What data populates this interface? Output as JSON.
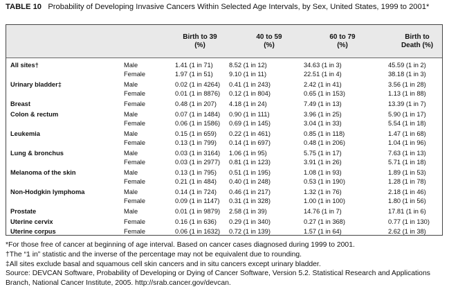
{
  "header": {
    "label": "TABLE 10",
    "title": "Probability of Developing Invasive Cancers Within Selected Age Intervals, by Sex, United States, 1999 to 2001*"
  },
  "table": {
    "columns": [
      [
        "Birth to 39",
        "(%)"
      ],
      [
        "40 to 59",
        "(%)"
      ],
      [
        "60 to 79",
        "(%)"
      ],
      [
        "Birth to",
        "Death (%)"
      ]
    ],
    "rows": [
      [
        "All sites†",
        "Male",
        "1.41 (1 in 71)",
        "8.52 (1 in 12)",
        "34.63 (1 in 3)",
        "45.59 (1 in 2)"
      ],
      [
        null,
        "Female",
        "1.97 (1 in 51)",
        "9.10 (1 in 11)",
        "22.51 (1 in 4)",
        "38.18 (1 in 3)"
      ],
      [
        "Urinary bladder‡",
        "Male",
        "0.02 (1 in 4264)",
        "0.41 (1 in 243)",
        "2.42 (1 in 41)",
        "3.56 (1 in 28)"
      ],
      [
        null,
        "Female",
        "0.01 (1 in 8876)",
        "0.12 (1 in 804)",
        "0.65 (1 in 153)",
        "1.13 (1 in 88)"
      ],
      [
        "Breast",
        "Female",
        "0.48 (1 in 207)",
        "4.18 (1 in 24)",
        "7.49 (1 in 13)",
        "13.39 (1 in 7)"
      ],
      [
        "Colon & rectum",
        "Male",
        "0.07 (1 in 1484)",
        "0.90 (1 in 111)",
        "3.96 (1 in 25)",
        "5.90 (1 in 17)"
      ],
      [
        null,
        "Female",
        "0.06 (1 in 1586)",
        "0.69 (1 in 145)",
        "3.04 (1 in 33)",
        "5.54 (1 in 18)"
      ],
      [
        "Leukemia",
        "Male",
        "0.15 (1 in 659)",
        "0.22 (1 in 461)",
        "0.85 (1 in 118)",
        "1.47 (1 in 68)"
      ],
      [
        null,
        "Female",
        "0.13 (1 in 799)",
        "0.14 (1 in 697)",
        "0.48 (1 in 206)",
        "1.04 (1 in 96)"
      ],
      [
        "Lung & bronchus",
        "Male",
        "0.03 (1 in 3164)",
        "1.06 (1 in 95)",
        "5.75 (1 in 17)",
        "7.63 (1 in 13)"
      ],
      [
        null,
        "Female",
        "0.03 (1 in 2977)",
        "0.81 (1 in 123)",
        "3.91 (1 in 26)",
        "5.71 (1 in 18)"
      ],
      [
        "Melanoma of the skin",
        "Male",
        "0.13 (1 in 795)",
        "0.51 (1 in 195)",
        "1.08 (1 in 93)",
        "1.89 (1 in 53)"
      ],
      [
        null,
        "Female",
        "0.21 (1 in 484)",
        "0.40 (1 in 248)",
        "0.53 (1 in 190)",
        "1.28 (1 in 78)"
      ],
      [
        "Non-Hodgkin lymphoma",
        "Male",
        "0.14 (1 in 724)",
        "0.46 (1 in 217)",
        "1.32 (1 in 76)",
        "2.18 (1 in 46)"
      ],
      [
        null,
        "Female",
        "0.09 (1 in 1147)",
        "0.31 (1 in 328)",
        "1.00 (1 in 100)",
        "1.80 (1 in 56)"
      ],
      [
        "Prostate",
        "Male",
        "0.01 (1 in 9879)",
        "2.58 (1 in 39)",
        "14.76 (1 in 7)",
        "17.81 (1 in 6)"
      ],
      [
        "Uterine cervix",
        "Female",
        "0.16 (1 in 636)",
        "0.29 (1 in 340)",
        "0.27 (1 in 368)",
        "0.77 (1 in 130)"
      ],
      [
        "Uterine corpus",
        "Female",
        "0.06 (1 in 1632)",
        "0.72 (1 in 139)",
        "1.57 (1 in 64)",
        "2.62 (1 in 38)"
      ]
    ]
  },
  "footnotes": [
    "*For those free of cancer at beginning of age interval. Based on cancer cases diagnosed during 1999 to 2001.",
    "†The “1 in” statistic and the inverse of the percentage may not be equivalent due to rounding.",
    "‡All sites exclude basal and squamous cell skin cancers and in situ cancers except urinary bladder.",
    "Source: DEVCAN Software, Probability of Developing or Dying of Cancer Software, Version 5.2. Statistical Research and Applications Branch, National Cancer Institute, 2005. http://srab.cancer.gov/devcan."
  ]
}
